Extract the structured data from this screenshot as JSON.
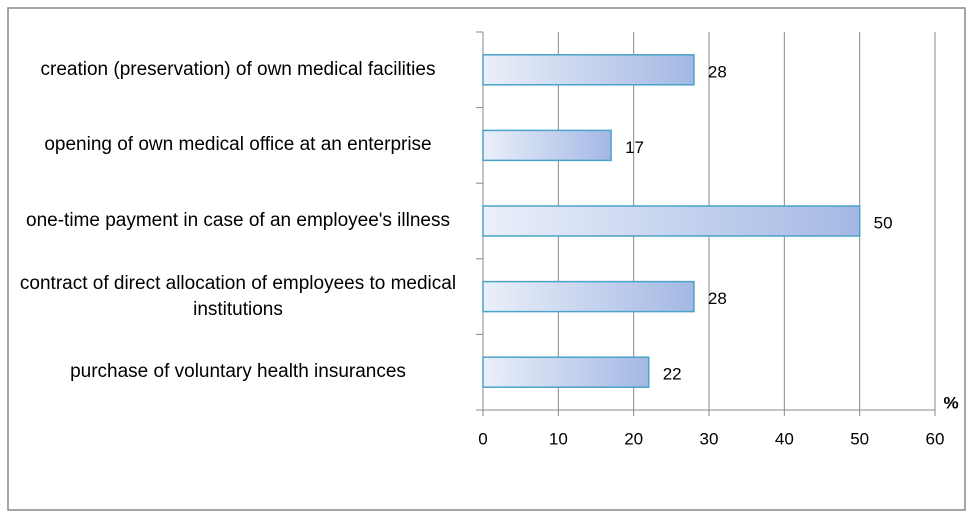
{
  "chart_data": {
    "type": "bar",
    "orientation": "horizontal",
    "categories": [
      "creation (preservation) of own medical facilities",
      "opening of own medical office at an enterprise",
      "one-time payment in case of an employee's illness",
      "contract of direct allocation of employees to medical institutions",
      "purchase of voluntary health insurances"
    ],
    "values": [
      28,
      17,
      50,
      28,
      22
    ],
    "color": "#a4b8e4",
    "xlabel": "%",
    "xlim": [
      0,
      60
    ],
    "xticks": [
      0,
      10,
      20,
      30,
      40,
      50,
      60
    ],
    "grid": true
  }
}
